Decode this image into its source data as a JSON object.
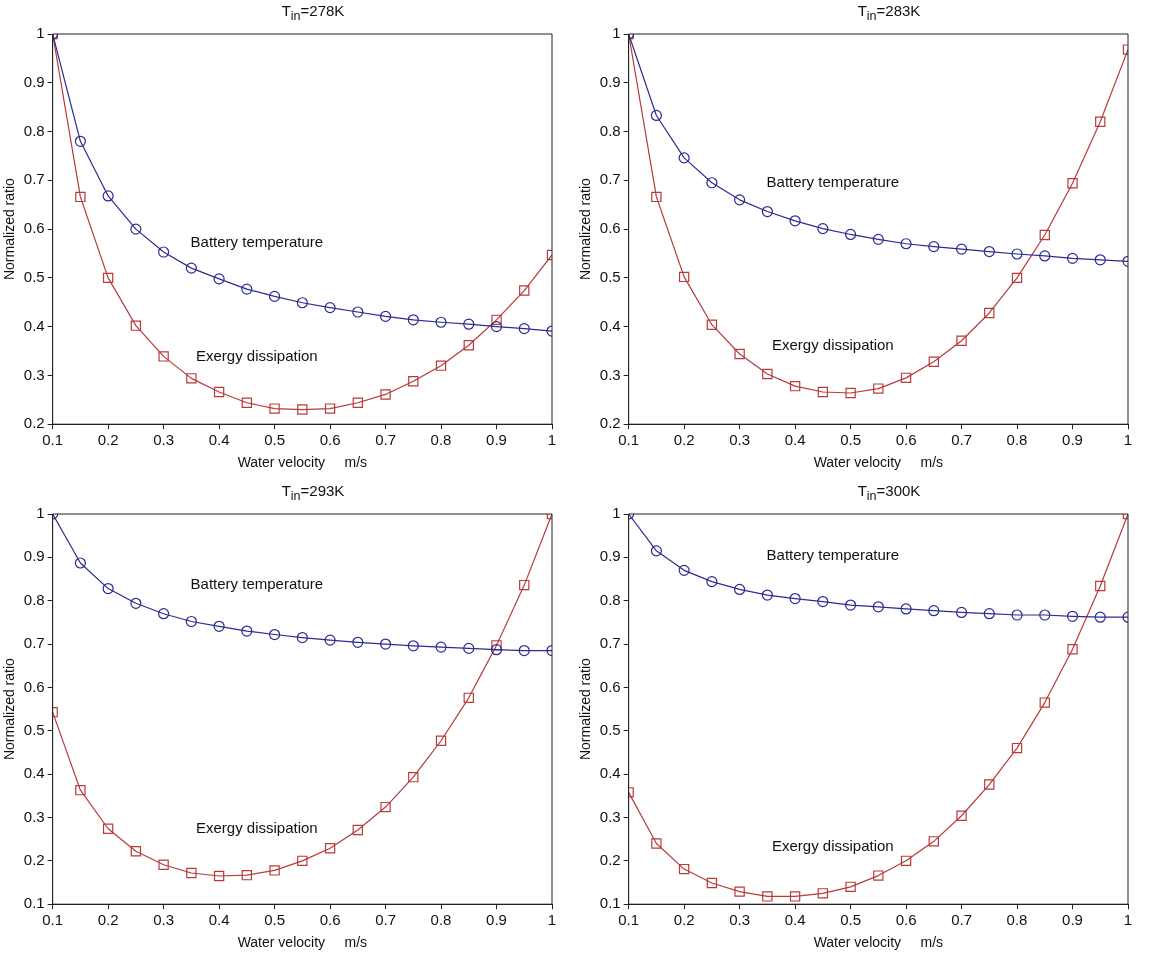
{
  "chart_data": [
    {
      "type": "line",
      "title": "T$_{in}$=278K",
      "xlabel": "Water velocity     m/s",
      "ylabel": "Normalized ratio",
      "x": [
        0.1,
        0.15,
        0.2,
        0.25,
        0.3,
        0.35,
        0.4,
        0.45,
        0.5,
        0.55,
        0.6,
        0.65,
        0.7,
        0.75,
        0.8,
        0.85,
        0.9,
        0.95,
        1
      ],
      "series": [
        {
          "name": "Battery temperature",
          "color": "#2b2b90",
          "marker": "circle",
          "values": [
            1,
            0.78,
            0.668,
            0.6,
            0.553,
            0.52,
            0.498,
            0.477,
            0.462,
            0.449,
            0.439,
            0.43,
            0.421,
            0.414,
            0.409,
            0.405,
            0.4,
            0.396,
            0.391
          ]
        },
        {
          "name": "Exergy dissipation",
          "color": "#b83a3a",
          "marker": "square",
          "values": [
            1,
            0.666,
            0.5,
            0.402,
            0.339,
            0.294,
            0.266,
            0.244,
            0.232,
            0.23,
            0.232,
            0.244,
            0.261,
            0.288,
            0.32,
            0.362,
            0.414,
            0.474,
            0.547
          ]
        }
      ],
      "xlim": [
        0.1,
        1
      ],
      "xticks": [
        0.1,
        0.2,
        0.3,
        0.4,
        0.5,
        0.6,
        0.7,
        0.8,
        0.9,
        1
      ],
      "ylim": [
        0.2,
        1
      ],
      "yticks": [
        0.2,
        0.3,
        0.4,
        0.5,
        0.6,
        0.7,
        0.8,
        0.9,
        1
      ],
      "grid": false,
      "legend": false
    },
    {
      "type": "line",
      "title": "T$_{in}$=283K",
      "xlabel": "Water velocity     m/s",
      "ylabel": "Normalized ratio",
      "x": [
        0.1,
        0.15,
        0.2,
        0.25,
        0.3,
        0.35,
        0.4,
        0.45,
        0.5,
        0.55,
        0.6,
        0.65,
        0.7,
        0.75,
        0.8,
        0.85,
        0.9,
        0.95,
        1
      ],
      "series": [
        {
          "name": "Battery temperature",
          "color": "#2b2b90",
          "marker": "circle",
          "values": [
            1,
            0.833,
            0.746,
            0.695,
            0.66,
            0.636,
            0.617,
            0.601,
            0.589,
            0.579,
            0.57,
            0.564,
            0.559,
            0.554,
            0.549,
            0.545,
            0.54,
            0.537,
            0.534
          ]
        },
        {
          "name": "Exergy dissipation",
          "color": "#b83a3a",
          "marker": "square",
          "values": [
            1,
            0.666,
            0.502,
            0.404,
            0.344,
            0.303,
            0.278,
            0.266,
            0.264,
            0.273,
            0.295,
            0.328,
            0.371,
            0.428,
            0.5,
            0.588,
            0.694,
            0.82,
            0.968
          ]
        }
      ],
      "xlim": [
        0.1,
        1
      ],
      "xticks": [
        0.1,
        0.2,
        0.3,
        0.4,
        0.5,
        0.6,
        0.7,
        0.8,
        0.9,
        1
      ],
      "ylim": [
        0.2,
        1
      ],
      "yticks": [
        0.2,
        0.3,
        0.4,
        0.5,
        0.6,
        0.7,
        0.8,
        0.9,
        1
      ],
      "grid": false,
      "legend": false
    },
    {
      "type": "line",
      "title": "T$_{in}$=293K",
      "xlabel": "Water velocity     m/s",
      "ylabel": "Normalized ratio",
      "x": [
        0.1,
        0.15,
        0.2,
        0.25,
        0.3,
        0.35,
        0.4,
        0.45,
        0.5,
        0.55,
        0.6,
        0.65,
        0.7,
        0.75,
        0.8,
        0.85,
        0.9,
        0.95,
        1
      ],
      "series": [
        {
          "name": "Battery temperature",
          "color": "#2b2b90",
          "marker": "circle",
          "values": [
            1,
            0.887,
            0.828,
            0.794,
            0.77,
            0.752,
            0.741,
            0.73,
            0.722,
            0.715,
            0.709,
            0.704,
            0.7,
            0.696,
            0.693,
            0.69,
            0.687,
            0.685,
            0.685
          ]
        },
        {
          "name": "Exergy dissipation",
          "color": "#b83a3a",
          "marker": "square",
          "values": [
            0.543,
            0.363,
            0.274,
            0.222,
            0.191,
            0.172,
            0.165,
            0.167,
            0.178,
            0.2,
            0.229,
            0.271,
            0.324,
            0.393,
            0.477,
            0.576,
            0.697,
            0.836,
            1
          ]
        }
      ],
      "xlim": [
        0.1,
        1
      ],
      "xticks": [
        0.1,
        0.2,
        0.3,
        0.4,
        0.5,
        0.6,
        0.7,
        0.8,
        0.9,
        1
      ],
      "ylim": [
        0.1,
        1
      ],
      "yticks": [
        0.1,
        0.2,
        0.3,
        0.4,
        0.5,
        0.6,
        0.7,
        0.8,
        0.9,
        1
      ],
      "grid": false,
      "legend": false
    },
    {
      "type": "line",
      "title": "T$_{in}$=300K",
      "xlabel": "Water velocity     m/s",
      "ylabel": "Normalized ratio",
      "x": [
        0.1,
        0.15,
        0.2,
        0.25,
        0.3,
        0.35,
        0.4,
        0.45,
        0.5,
        0.55,
        0.6,
        0.65,
        0.7,
        0.75,
        0.8,
        0.85,
        0.9,
        0.95,
        1
      ],
      "series": [
        {
          "name": "Battery temperature",
          "color": "#2b2b90",
          "marker": "circle",
          "values": [
            1,
            0.915,
            0.87,
            0.844,
            0.826,
            0.813,
            0.805,
            0.798,
            0.79,
            0.786,
            0.781,
            0.777,
            0.773,
            0.77,
            0.767,
            0.767,
            0.764,
            0.762,
            0.762
          ]
        },
        {
          "name": "Exergy dissipation",
          "color": "#b83a3a",
          "marker": "square",
          "values": [
            0.358,
            0.24,
            0.181,
            0.149,
            0.129,
            0.118,
            0.118,
            0.125,
            0.14,
            0.166,
            0.2,
            0.245,
            0.304,
            0.376,
            0.46,
            0.565,
            0.688,
            0.834,
            1
          ]
        }
      ],
      "xlim": [
        0.1,
        1
      ],
      "xticks": [
        0.1,
        0.2,
        0.3,
        0.4,
        0.5,
        0.6,
        0.7,
        0.8,
        0.9,
        1
      ],
      "ylim": [
        0.1,
        1
      ],
      "yticks": [
        0.1,
        0.2,
        0.3,
        0.4,
        0.5,
        0.6,
        0.7,
        0.8,
        0.9,
        1
      ],
      "grid": false,
      "legend": false
    }
  ]
}
